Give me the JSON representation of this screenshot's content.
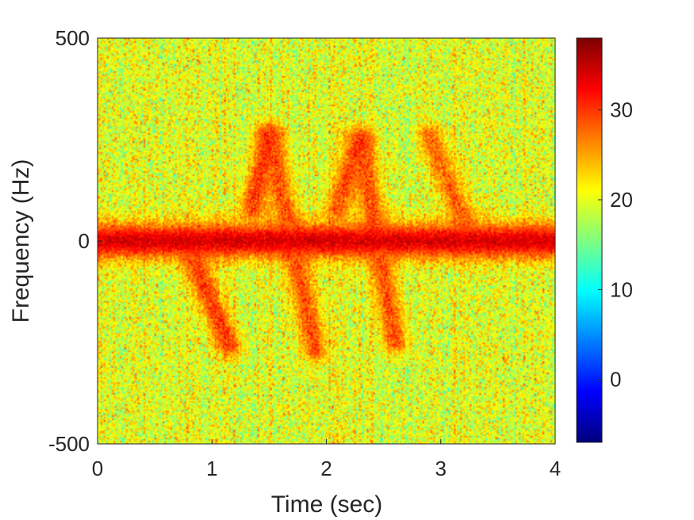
{
  "chart_data": {
    "type": "heatmap",
    "title": "",
    "xlabel": "Time (sec)",
    "ylabel": "Frequency (Hz)",
    "xlim": [
      0,
      4
    ],
    "ylim": [
      -500,
      500
    ],
    "x_ticks": [
      "0",
      "1",
      "2",
      "3",
      "4"
    ],
    "y_ticks": [
      "-500",
      "0",
      "500"
    ],
    "colormap": "jet",
    "colorbar": {
      "range": [
        -7,
        38
      ],
      "ticks": [
        "0",
        "10",
        "20",
        "30"
      ],
      "location": "right"
    },
    "background_level": 20,
    "features": [
      {
        "name": "dc-band",
        "frequency": 0,
        "bandwidth": 50,
        "level": 36,
        "x_start": 0,
        "x_end": 4
      },
      {
        "name": "micro-doppler-neg-1",
        "x_start": 0.85,
        "x_end": 1.15,
        "f_start": -50,
        "f_end": -260,
        "level": 31
      },
      {
        "name": "micro-doppler-pos-1",
        "x_start": 1.35,
        "x_end": 1.5,
        "f_start": 80,
        "f_end": 260,
        "level": 31
      },
      {
        "name": "micro-doppler-mid-1",
        "x_start": 1.5,
        "x_end": 1.9,
        "f_start": 260,
        "f_end": -270,
        "level": 30
      },
      {
        "name": "micro-doppler-pos-2",
        "x_start": 2.1,
        "x_end": 2.3,
        "f_start": 80,
        "f_end": 250,
        "level": 30
      },
      {
        "name": "micro-doppler-mid-2",
        "x_start": 2.3,
        "x_end": 2.6,
        "f_start": 250,
        "f_end": -250,
        "level": 30
      },
      {
        "name": "micro-doppler-pos-3",
        "x_start": 2.9,
        "x_end": 3.2,
        "f_start": 260,
        "f_end": 50,
        "level": 29
      }
    ]
  }
}
